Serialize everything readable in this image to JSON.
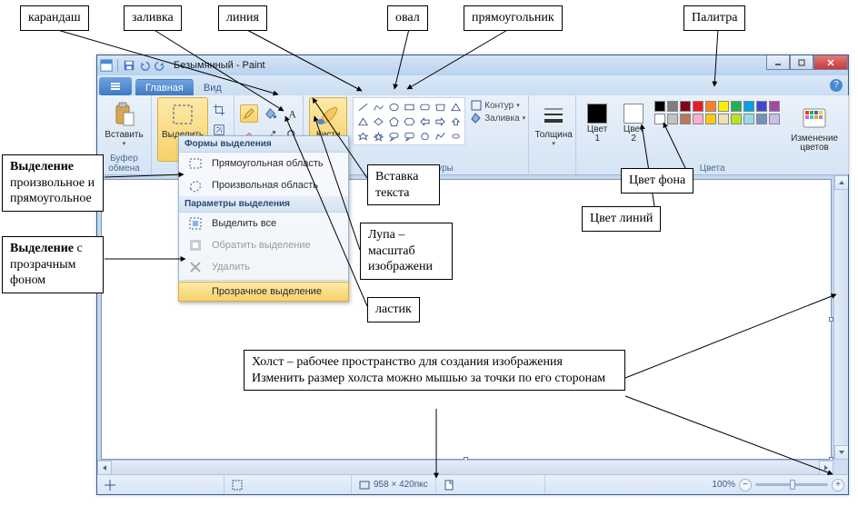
{
  "window": {
    "title": "Безымянный - Paint"
  },
  "tabs": {
    "main": "Главная",
    "view": "Вид"
  },
  "groups": {
    "clipboard": "Буфер обмена",
    "shapes": "Фигуры",
    "colors": "Цвета"
  },
  "buttons": {
    "paste": "Вставить",
    "select": "Выделить",
    "brushes": "Кисти",
    "outline": "Контур",
    "fill": "Заливка",
    "thickness": "Толщина",
    "color1": "Цвет 1",
    "color2": "Цвет 2",
    "editcolors": "Изменение цветов"
  },
  "dropdown": {
    "section1": "Формы выделения",
    "rect": "Прямоугольная область",
    "free": "Произвольная область",
    "section2": "Параметры выделения",
    "all": "Выделить все",
    "invert": "Обратить выделение",
    "delete": "Удалить",
    "transparent": "Прозрачное выделение"
  },
  "status": {
    "size": "958 × 420пкс",
    "zoom": "100%"
  },
  "palette_colors_row1": [
    "#000000",
    "#7f7f7f",
    "#880015",
    "#ed1c24",
    "#ff7f27",
    "#fff200",
    "#22b14c",
    "#00a2e8",
    "#3f48cc",
    "#a349a4"
  ],
  "palette_colors_row2": [
    "#ffffff",
    "#c3c3c3",
    "#b97a57",
    "#ffaec9",
    "#ffc90e",
    "#efe4b0",
    "#b5e61d",
    "#99d9ea",
    "#7092be",
    "#c8bfe7"
  ],
  "color1_value": "#000000",
  "color2_value": "#ffffff",
  "callouts": {
    "pencil": "карандаш",
    "fill": "заливка",
    "line": "линия",
    "oval": "овал",
    "rect": "прямоугольник",
    "palette": "Палитра",
    "insert_text": "Вставка текста",
    "bg_color": "Цвет фона",
    "line_color": "Цвет линий",
    "magnifier": "Лупа – масштаб изображени",
    "eraser": "ластик",
    "selection": "Выделение произвольное и прямоугольное",
    "selection_bold": "Выделение",
    "selection_rest": " произвольное и прямоугольное",
    "sel_transp_bold": "Выделение",
    "sel_transp_rest": " с прозрачным фоном",
    "canvas": "Холст – рабочее пространство для создания изображения\nИзменить размер холста можно мышью за точки по его сторонам"
  }
}
